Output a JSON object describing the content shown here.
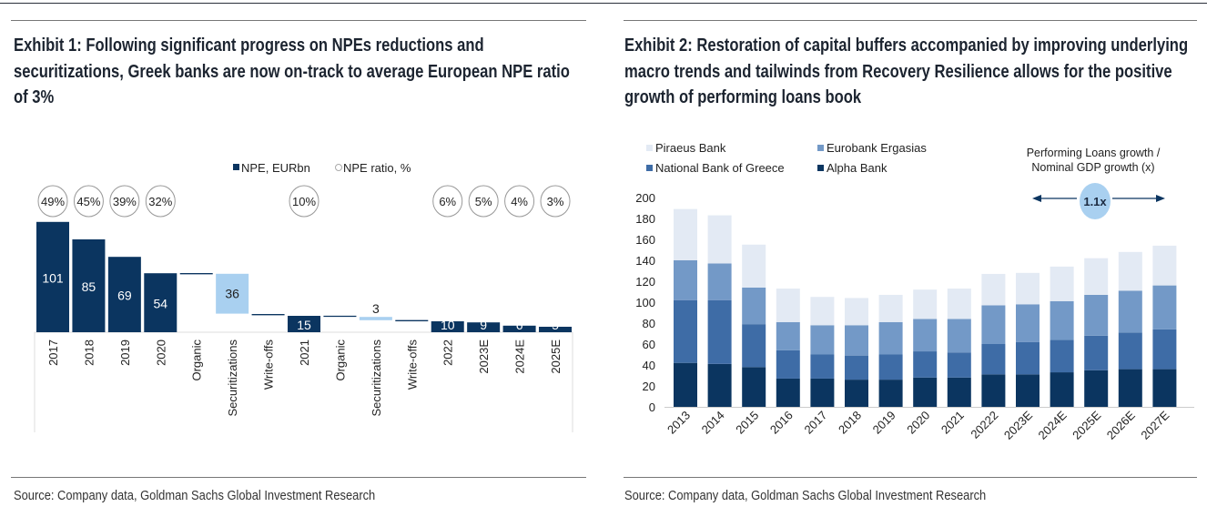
{
  "exhibit1": {
    "title": "Exhibit 1: Following significant progress on NPEs reductions and securitizations, Greek banks are now on-track to average European NPE ratio of 3%",
    "source": "Source: Company data, Goldman Sachs Global Investment Research"
  },
  "exhibit2": {
    "title": "Exhibit 2: Restoration of capital buffers accompanied by improving underlying macro trends and tailwinds from Recovery Resilience allows for the positive growth of performing loans book",
    "source": "Source: Company data, Goldman Sachs Global Investment Research"
  },
  "chart_data": [
    {
      "type": "bar",
      "subtype": "waterfall",
      "legend": [
        "NPE, EURbn",
        "NPE ratio, %"
      ],
      "legend_placement": "top-center",
      "categories": [
        "2017",
        "2018",
        "2019",
        "2020",
        "Organic",
        "Securitizations",
        "Write-offs",
        "2021",
        "Organic",
        "Securitizations",
        "Write-offs",
        "2022",
        "2023E",
        "2024E",
        "2025E"
      ],
      "bars": [
        {
          "kind": "total",
          "value": 101,
          "label": "101",
          "ratio": "49%"
        },
        {
          "kind": "total",
          "value": 85,
          "label": "85",
          "ratio": "45%"
        },
        {
          "kind": "total",
          "value": 69,
          "label": "69",
          "ratio": "39%"
        },
        {
          "kind": "total",
          "value": 54,
          "label": "54",
          "ratio": "32%"
        },
        {
          "kind": "step",
          "from": 54,
          "to": 53.5,
          "label": "",
          "ratio": ""
        },
        {
          "kind": "step",
          "from": 53.5,
          "to": 17,
          "label": "36",
          "ratio": ""
        },
        {
          "kind": "step",
          "from": 16.5,
          "to": 16,
          "label": "",
          "ratio": ""
        },
        {
          "kind": "total",
          "value": 15,
          "label": "15",
          "ratio": "10%"
        },
        {
          "kind": "step",
          "from": 15,
          "to": 14.6,
          "label": "",
          "ratio": ""
        },
        {
          "kind": "step",
          "from": 14,
          "to": 11,
          "label": "3",
          "ratio": ""
        },
        {
          "kind": "step",
          "from": 11,
          "to": 10.6,
          "label": "",
          "ratio": ""
        },
        {
          "kind": "total",
          "value": 10,
          "label": "10",
          "ratio": "6%"
        },
        {
          "kind": "total",
          "value": 9,
          "label": "9",
          "ratio": "5%"
        },
        {
          "kind": "total",
          "value": 6,
          "label": "6",
          "ratio": "4%"
        },
        {
          "kind": "total",
          "value": 5,
          "label": "5",
          "ratio": "3%"
        }
      ],
      "colors": {
        "total": "#0b3560",
        "securitization": "#a9d0f0",
        "step_line": "#0b3560"
      }
    },
    {
      "type": "bar",
      "subtype": "stacked",
      "categories": [
        "2013",
        "2014",
        "2015",
        "2016",
        "2017",
        "2018",
        "2019",
        "2020",
        "2021",
        "20222",
        "2023E",
        "2024E",
        "2025E",
        "2026E",
        "2027E"
      ],
      "series": [
        {
          "name": "Alpha Bank",
          "color": "#0b3560",
          "values": [
            42,
            41,
            38,
            27,
            27,
            26,
            26,
            28,
            28,
            31,
            31,
            33,
            35,
            36,
            36
          ]
        },
        {
          "name": "National Bank of Greece",
          "color": "#3e6ca6",
          "values": [
            60,
            61,
            41,
            27,
            23,
            23,
            24,
            25,
            24,
            29,
            31,
            31,
            33,
            35,
            38
          ]
        },
        {
          "name": "Eurobank Ergasias",
          "color": "#7399c7",
          "values": [
            38,
            35,
            35,
            27,
            28,
            29,
            31,
            31,
            32,
            37,
            36,
            37,
            39,
            40,
            42
          ]
        },
        {
          "name": "Piraeus Bank",
          "color": "#e3eaf4",
          "values": [
            49,
            46,
            41,
            32,
            27,
            26,
            26,
            28,
            29,
            30,
            30,
            33,
            35,
            37,
            38
          ]
        }
      ],
      "legend_order": [
        "Piraeus Bank",
        "Eurobank Ergasias",
        "National Bank of Greece",
        "Alpha Bank"
      ],
      "legend_placement": "top-left",
      "ylim": [
        0,
        200
      ],
      "yticks": [
        "0",
        "20",
        "40",
        "60",
        "80",
        "100",
        "120",
        "140",
        "160",
        "180",
        "200"
      ],
      "annotation": {
        "text_lines": [
          "Performing Loans growth /",
          "Nominal GDP growth (x)"
        ],
        "value": "1.1x",
        "color": "#a9d0f0"
      },
      "grid": false
    }
  ]
}
